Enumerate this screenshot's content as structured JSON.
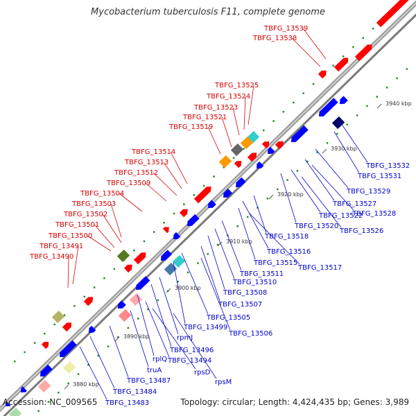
{
  "title": "Mycobacterium tuberculosis F11, complete genome",
  "accession": "Accession: NC_009565",
  "summary": "Topology: circular; Length: 4,424,435 bp; Genes: 3,989",
  "colors": {
    "plus_label": "#d40000",
    "minus_label": "#0000c8",
    "plus_gene": "#ff0000",
    "minus_gene": "#0000ff",
    "backbone": "#8a8a8a",
    "tick": "#2a8a2a",
    "gc_dots": "#2a8a2a"
  },
  "scale_labels": [
    "3880 kbp",
    "3890 kbp",
    "3900 kbp",
    "3910 kbp",
    "3920 kbp",
    "3930 kbp",
    "3940 kbp"
  ],
  "plus_strand_labels": [
    "TBFG_13539",
    "TBFG_13538",
    "TBFG_13525",
    "TBFG_13524",
    "TBFG_13523",
    "TBFG_13521",
    "TBFG_13519",
    "TBFG_13514",
    "TBFG_13513",
    "TBFG_13512",
    "TBFG_13509",
    "TBFG_13504",
    "TBFG_13503",
    "TBFG_13502",
    "TBFG_13501",
    "TBFG_13500",
    "TBFG_13491",
    "TBFG_13490"
  ],
  "minus_strand_labels": [
    "TBFG_13532",
    "TBFG_13531",
    "TBFG_13529",
    "TBFG_13527",
    "TBFG_13528",
    "TBFG_13522",
    "TBFG_13520",
    "TBFG_13526",
    "TBFG_13518",
    "TBFG_13516",
    "TBFG_13515",
    "TBFG_13517",
    "TBFG_13511",
    "TBFG_13510",
    "TBFG_13508",
    "TBFG_13507",
    "TBFG_13505",
    "TBFG_13499",
    "TBFG_13506",
    "rpmJ",
    "TBFG_13496",
    "rplQ",
    "TBFG_13494",
    "truA",
    "rpsD",
    "TBFG_13487",
    "rpsM",
    "TBFG_13484",
    "TBFG_13483"
  ]
}
